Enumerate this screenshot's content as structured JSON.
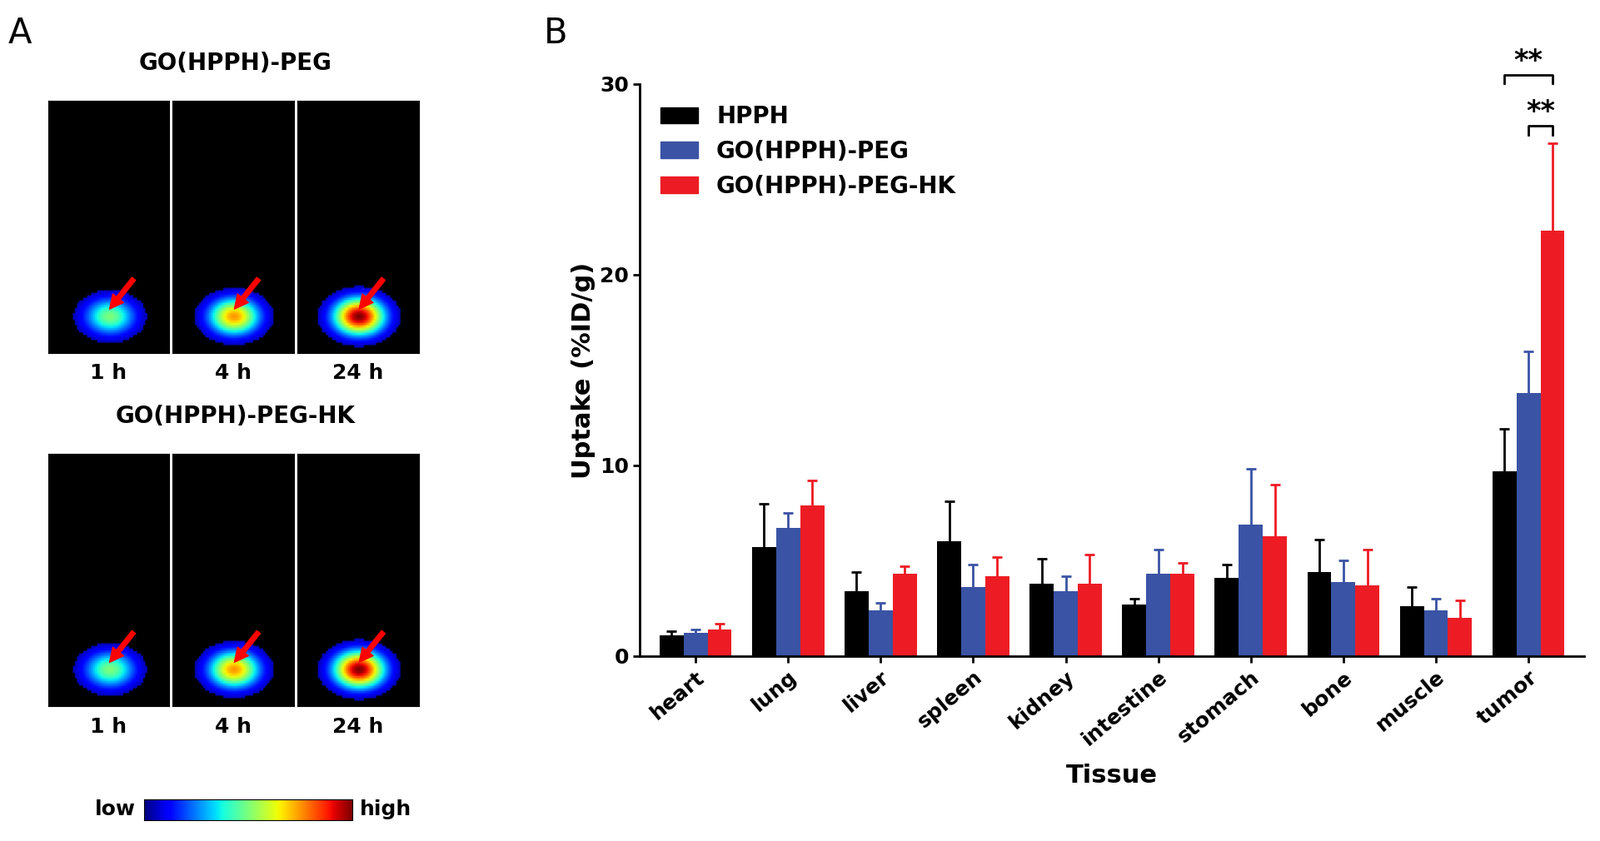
{
  "panel_labels": [
    "A",
    "B"
  ],
  "imaging": {
    "rows": [
      {
        "title": "GO(HPPH)-PEG",
        "times": [
          "1 h",
          "4 h",
          "24 h"
        ]
      },
      {
        "title": "GO(HPPH)-PEG-HK",
        "times": [
          "1 h",
          "4 h",
          "24 h"
        ]
      }
    ],
    "colorbar": {
      "low": "low",
      "high": "high"
    }
  },
  "chart_data": {
    "type": "bar",
    "x_label": "Tissue",
    "y_label": "Uptake (%ID/g)",
    "categories": [
      "heart",
      "lung",
      "liver",
      "spleen",
      "kidney",
      "intestine",
      "stomach",
      "bone",
      "muscle",
      "tumor"
    ],
    "series": [
      {
        "name": "HPPH",
        "color": "#000000",
        "values": [
          1.1,
          5.7,
          3.4,
          6.0,
          3.8,
          2.7,
          4.1,
          4.4,
          2.6,
          9.7
        ],
        "errors": [
          0.2,
          2.3,
          1.0,
          2.1,
          1.3,
          0.3,
          0.7,
          1.7,
          1.0,
          2.2
        ]
      },
      {
        "name": "GO(HPPH)-PEG",
        "color": "#3a53a4",
        "values": [
          1.2,
          6.7,
          2.4,
          3.6,
          3.4,
          4.3,
          6.9,
          3.9,
          2.4,
          13.8
        ],
        "errors": [
          0.2,
          0.8,
          0.4,
          1.2,
          0.8,
          1.3,
          2.9,
          1.1,
          0.6,
          2.2
        ]
      },
      {
        "name": "GO(HPPH)-PEG-HK",
        "color": "#ed1c24",
        "values": [
          1.4,
          7.9,
          4.3,
          4.2,
          3.8,
          4.3,
          6.3,
          3.7,
          2.0,
          22.3
        ],
        "errors": [
          0.3,
          1.3,
          0.4,
          1.0,
          1.5,
          0.6,
          2.7,
          1.9,
          0.9,
          4.6
        ]
      }
    ],
    "ylim": [
      0,
      30
    ],
    "yticks": [
      0,
      10,
      20,
      30
    ],
    "legend": "upper left",
    "grid": false,
    "annotations": [
      {
        "text": "**",
        "category": "tumor",
        "from": "HPPH",
        "to": "GO(HPPH)-PEG-HK"
      },
      {
        "text": "**",
        "category": "tumor",
        "from": "GO(HPPH)-PEG",
        "to": "GO(HPPH)-PEG-HK"
      }
    ]
  }
}
